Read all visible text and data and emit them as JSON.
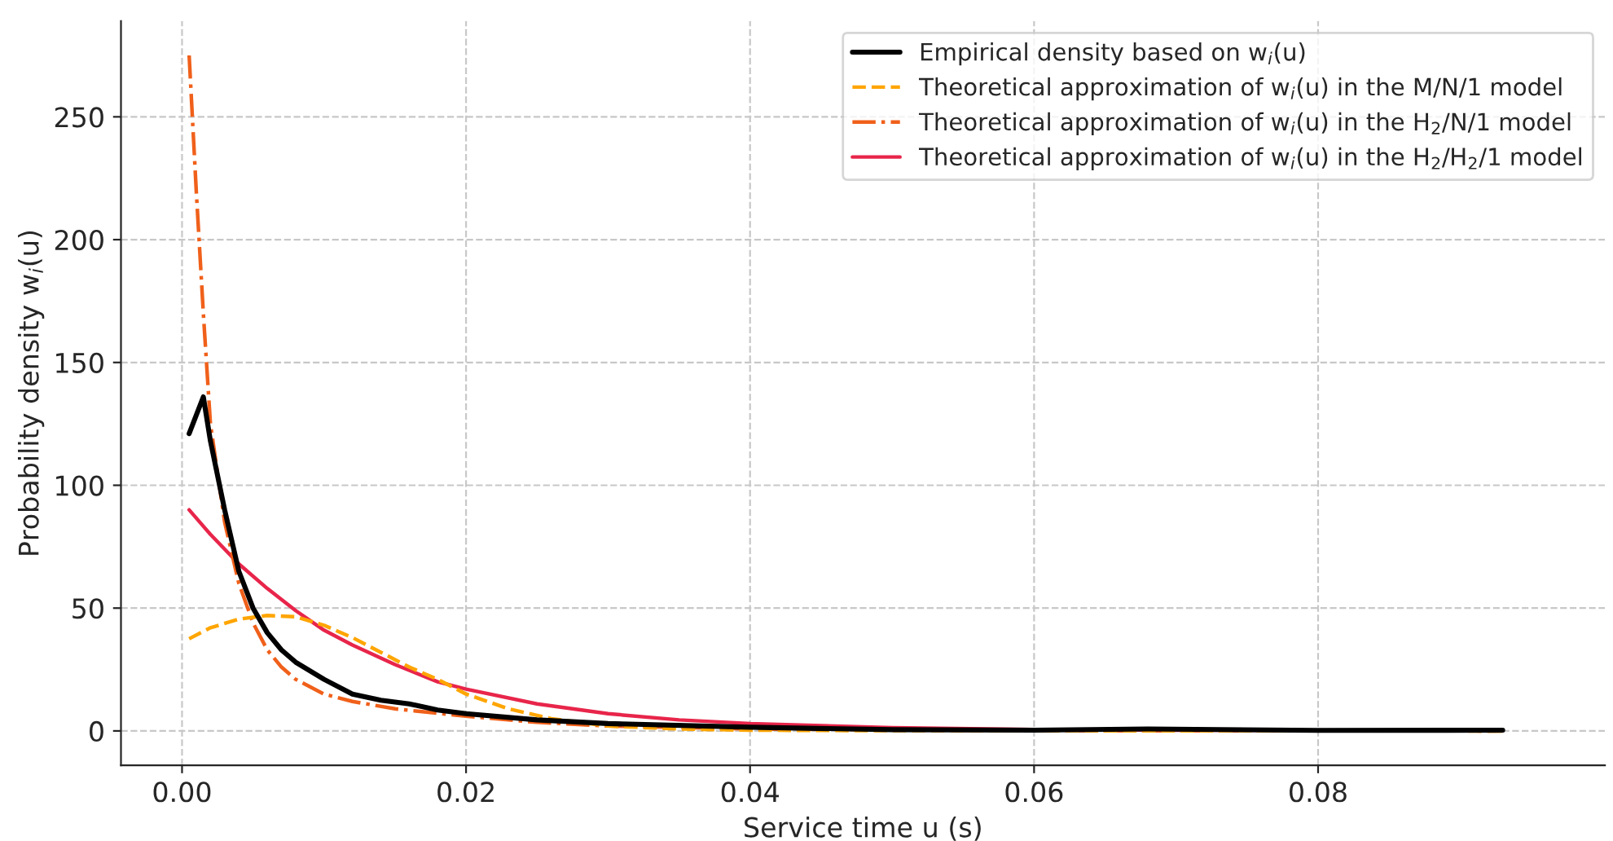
{
  "chart_data": {
    "type": "line",
    "xlabel": "Service time u (s)",
    "ylabel": "Probability density w$_{i}$(u)",
    "xlim": [
      -0.0043,
      0.1002
    ],
    "ylim": [
      -14,
      289
    ],
    "xticks": [
      {
        "value": 0,
        "label": "0.00"
      },
      {
        "value": 0.02,
        "label": "0.02"
      },
      {
        "value": 0.04,
        "label": "0.04"
      },
      {
        "value": 0.06,
        "label": "0.06"
      },
      {
        "value": 0.08,
        "label": "0.08"
      }
    ],
    "yticks": [
      0,
      50,
      100,
      150,
      200,
      250
    ],
    "grid": true,
    "legend": "top right",
    "marker": "none",
    "series": [
      {
        "name": "Empirical density based on w$_{i}$(u)",
        "color": "#000000",
        "line_style": "solid",
        "x": [
          0.0005,
          0.0015,
          0.002,
          0.003,
          0.004,
          0.005,
          0.006,
          0.007,
          0.008,
          0.01,
          0.012,
          0.014,
          0.016,
          0.018,
          0.02,
          0.025,
          0.03,
          0.04,
          0.05,
          0.06,
          0.068,
          0.08,
          0.093
        ],
        "values": [
          121,
          136,
          118,
          90,
          65,
          50,
          40,
          33,
          28,
          21,
          15,
          12.5,
          11,
          8.5,
          7,
          4.5,
          3,
          1.5,
          0.5,
          0.3,
          0.8,
          0.2,
          0.3
        ]
      },
      {
        "name": "Theoretical approximation of w$_{i}$(u) in the M/N/1 model",
        "color": "#ffa500",
        "line_style": "dashed",
        "x": [
          0.0005,
          0.002,
          0.004,
          0.006,
          0.008,
          0.01,
          0.012,
          0.014,
          0.016,
          0.018,
          0.02,
          0.023,
          0.026,
          0.03,
          0.035,
          0.04,
          0.05,
          0.093
        ],
        "values": [
          37.5,
          42,
          45.5,
          47,
          46.5,
          43,
          38,
          32,
          26,
          21,
          15,
          9,
          5,
          2,
          0.8,
          0.3,
          0.1,
          0
        ]
      },
      {
        "name": "Theoretical approximation of w$_{i}$(u) in the H$_{2}$/N/1 model",
        "color": "#f0601a",
        "line_style": "dashdot",
        "x": [
          0.0005,
          0.001,
          0.0015,
          0.002,
          0.003,
          0.004,
          0.005,
          0.006,
          0.007,
          0.008,
          0.01,
          0.012,
          0.015,
          0.02,
          0.025,
          0.03,
          0.04,
          0.06,
          0.093
        ],
        "values": [
          275,
          220,
          170,
          125,
          85,
          60,
          44,
          33,
          26,
          21,
          15,
          12,
          9,
          6,
          3.5,
          2,
          0.8,
          0.1,
          0
        ]
      },
      {
        "name": "Theoretical approximation of w$_{i}$(u) in the H$_{2}$/H$_{2}$/1 model",
        "color": "#e8254a",
        "line_style": "solid",
        "x": [
          0.0005,
          0.002,
          0.004,
          0.006,
          0.008,
          0.01,
          0.012,
          0.015,
          0.018,
          0.02,
          0.025,
          0.03,
          0.035,
          0.04,
          0.05,
          0.06,
          0.07,
          0.093
        ],
        "values": [
          90,
          80,
          68,
          58,
          49,
          41,
          35,
          27,
          20,
          17,
          11,
          7,
          4.5,
          3,
          1.3,
          0.6,
          0.3,
          0.1
        ]
      }
    ]
  }
}
